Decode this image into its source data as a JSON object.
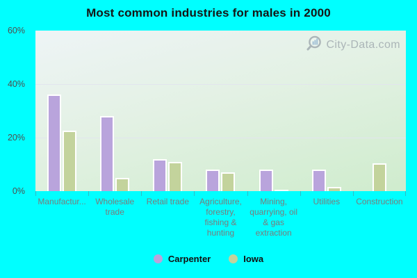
{
  "title": "Most common industries for males in 2000",
  "watermark": {
    "text": "City-Data.com"
  },
  "colors": {
    "page_background": "#00ffff",
    "carpenter_bar": "#b9a4dc",
    "iowa_bar": "#c3d39c",
    "plot_gradient_top": "#eef4f6",
    "plot_gradient_bottom": "#cfeccd",
    "gridline": "#e2e5ee",
    "x_label_text": "#7b7b7b",
    "y_label_text": "#4e4e4e",
    "title_text": "#151515",
    "watermark_text": "#98a1a8"
  },
  "y_axis": {
    "tick_labels": [
      "60%",
      "40%",
      "20%",
      "0%"
    ]
  },
  "legend": {
    "items": [
      {
        "label": "Carpenter",
        "color": "#b9a4dc"
      },
      {
        "label": "Iowa",
        "color": "#c3d39c"
      }
    ]
  },
  "chart_data": {
    "type": "bar",
    "title": "Most common industries for males in 2000",
    "categories": [
      "Manufactur...",
      "Wholesale trade",
      "Retail trade",
      "Agriculture, forestry, fishing & hunting",
      "Mining, quarrying, oil & gas extraction",
      "Utilities",
      "Construction"
    ],
    "series": [
      {
        "name": "Carpenter",
        "color": "#b9a4dc",
        "values": [
          36,
          28,
          12,
          8,
          8,
          8,
          0
        ]
      },
      {
        "name": "Iowa",
        "color": "#c3d39c",
        "values": [
          22.5,
          5,
          11,
          7,
          0.3,
          1.5,
          10.5
        ]
      }
    ],
    "ylabel": "",
    "ylim": [
      0,
      60
    ],
    "y_ticks": [
      0,
      20,
      40,
      60
    ],
    "grid": true,
    "legend_position": "bottom"
  }
}
